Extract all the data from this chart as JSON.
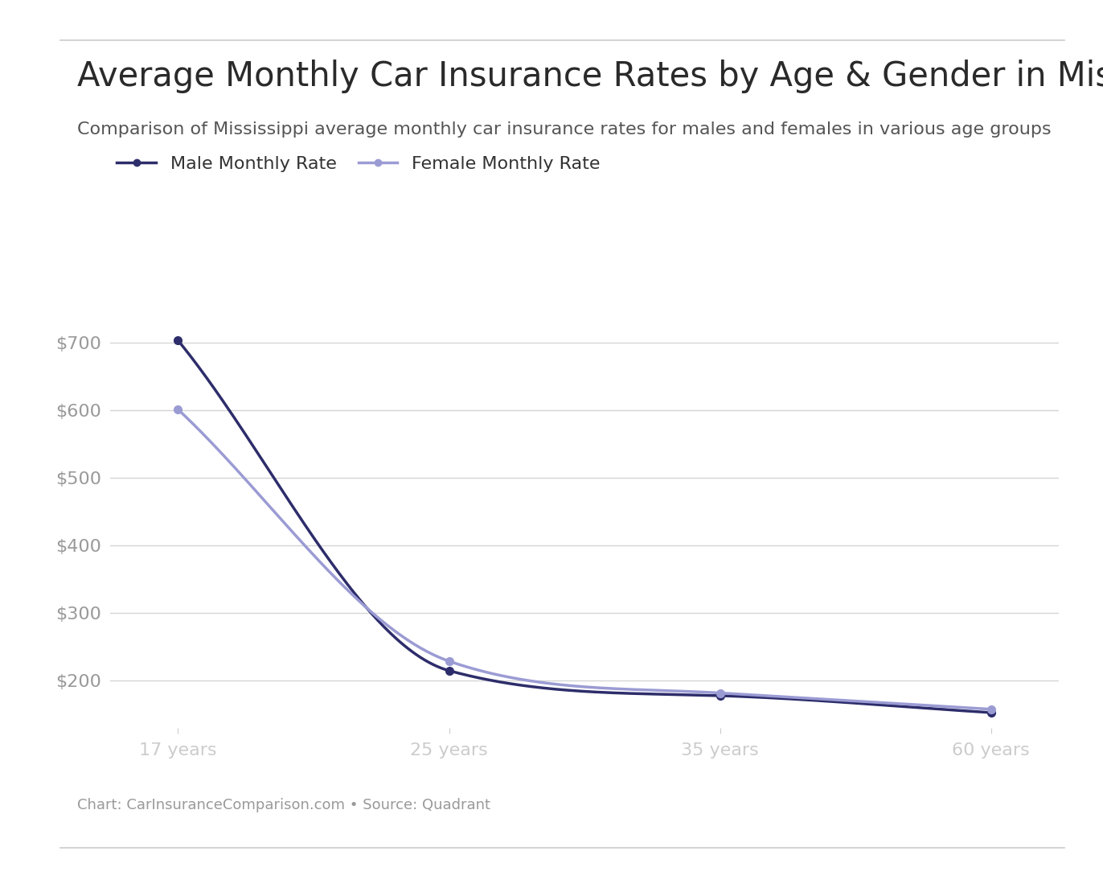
{
  "title": "Average Monthly Car Insurance Rates by Age & Gender in Mississippi",
  "subtitle": "Comparison of Mississippi average monthly car insurance rates for males and females in various age groups",
  "source_text": "Chart: CarInsuranceComparison.com • Source: Quadrant",
  "ages": [
    17,
    25,
    35,
    60
  ],
  "age_labels": [
    "17 years",
    "25 years",
    "35 years",
    "60 years"
  ],
  "male_rates": [
    703,
    215,
    178,
    153
  ],
  "female_rates": [
    601,
    229,
    182,
    158
  ],
  "male_color": "#2d2d6b",
  "female_color": "#9b9bd4",
  "background_color": "#ffffff",
  "grid_color": "#d5d5d5",
  "yticks": [
    200,
    300,
    400,
    500,
    600,
    700
  ],
  "ylim": [
    130,
    760
  ],
  "legend_male": "Male Monthly Rate",
  "legend_female": "Female Monthly Rate",
  "title_fontsize": 30,
  "subtitle_fontsize": 16,
  "source_fontsize": 13,
  "tick_fontsize": 16,
  "legend_fontsize": 16
}
